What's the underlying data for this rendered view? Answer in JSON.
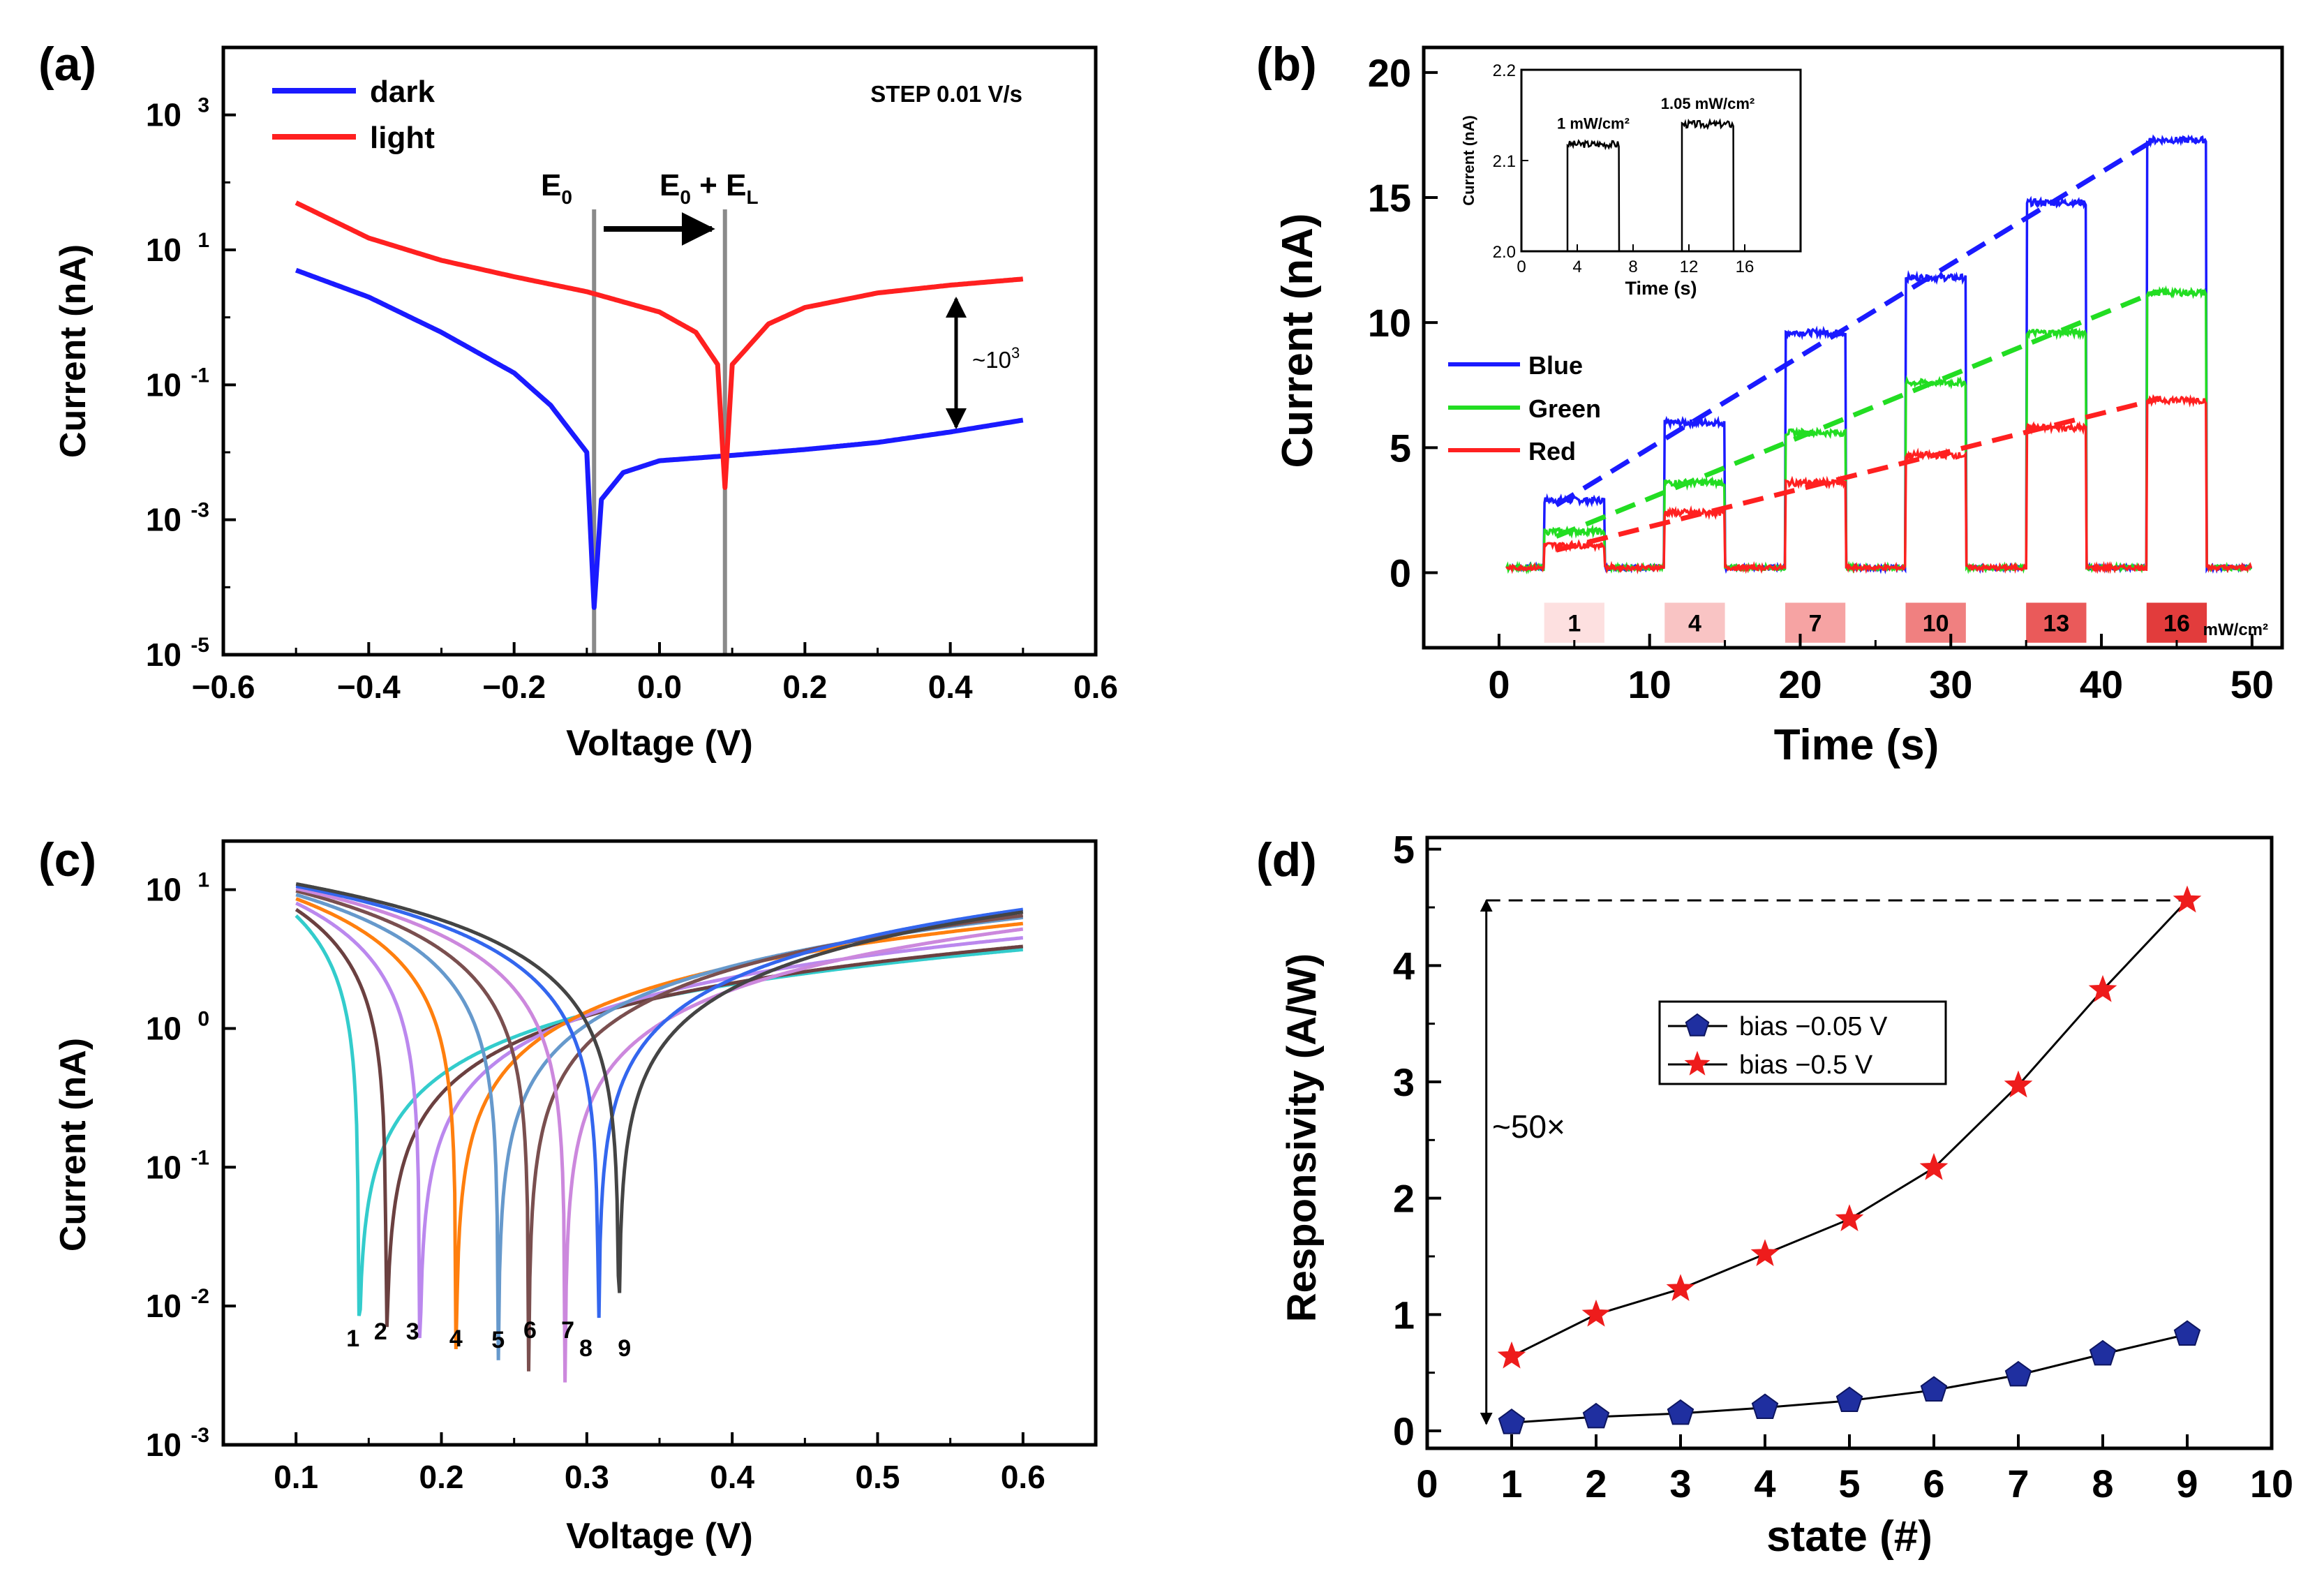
{
  "chart_data": [
    {
      "panel_label": "(a)",
      "type": "line",
      "title": "",
      "xlabel": "Voltage (V)",
      "ylabel": "Current (nA)",
      "xlim": [
        -0.6,
        0.6
      ],
      "ylim_log10": [
        -5,
        4
      ],
      "xticks": [
        "−0.6",
        "−0.4",
        "−0.2",
        "0.0",
        "0.2",
        "0.4",
        "0.6"
      ],
      "ytick_exponents": [
        "3",
        "1",
        "-1",
        "-3",
        "-5"
      ],
      "series": [
        {
          "name": "dark",
          "color": "#1a1aff",
          "zero_voltage": -0.09,
          "x_range": [
            -0.5,
            0.5
          ],
          "x": [
            -0.5,
            -0.4,
            -0.3,
            -0.2,
            -0.15,
            -0.1,
            -0.09,
            -0.08,
            -0.05,
            0.0,
            0.1,
            0.2,
            0.3,
            0.4,
            0.5
          ],
          "y_nA": [
            5.0,
            2.0,
            0.6,
            0.15,
            0.05,
            0.01,
            5e-05,
            0.002,
            0.005,
            0.0075,
            0.009,
            0.011,
            0.014,
            0.02,
            0.03
          ]
        },
        {
          "name": "light",
          "color": "#ff2020",
          "zero_voltage": 0.09,
          "x_range": [
            -0.5,
            0.5
          ],
          "x": [
            -0.5,
            -0.4,
            -0.3,
            -0.2,
            -0.1,
            0.0,
            0.05,
            0.08,
            0.09,
            0.1,
            0.15,
            0.2,
            0.3,
            0.4,
            0.5
          ],
          "y_nA": [
            50,
            15,
            7,
            4,
            2.4,
            1.2,
            0.6,
            0.2,
            0.003,
            0.2,
            0.8,
            1.4,
            2.3,
            3.0,
            3.7
          ]
        }
      ],
      "vertical_lines": [
        {
          "x": -0.09,
          "label_main": "E",
          "label_sub": "0"
        },
        {
          "x": 0.09,
          "label_main": "E",
          "label_sub": "0",
          "label_plus": " + E",
          "label_sub2": "L"
        }
      ],
      "annotations": {
        "step": "STEP 0.01 V/s",
        "ratio": "~10",
        "ratio_exp": "3"
      }
    },
    {
      "panel_label": "(b)",
      "type": "line",
      "xlabel": "Time (s)",
      "ylabel": "Current (nA)",
      "xlim": [
        -5,
        52
      ],
      "ylim": [
        -3,
        21
      ],
      "xticks": [
        "0",
        "10",
        "20",
        "30",
        "40",
        "50"
      ],
      "yticks": [
        "0",
        "5",
        "10",
        "15",
        "20"
      ],
      "pulse_intervals_s": [
        [
          3,
          7
        ],
        [
          11,
          15
        ],
        [
          19,
          23
        ],
        [
          27,
          31
        ],
        [
          35,
          39
        ],
        [
          43,
          47
        ]
      ],
      "intensity_unit": "mW/cm²",
      "intensities": [
        "1",
        "4",
        "7",
        "10",
        "13",
        "16"
      ],
      "intensity_colors": [
        "#fde0e0",
        "#f9c4c4",
        "#f6a3a3",
        "#f08080",
        "#ea5a5a",
        "#e23c3c"
      ],
      "series": [
        {
          "name": "Blue",
          "color": "#1a1aff",
          "plateau_nA": [
            2.9,
            6.0,
            9.6,
            11.8,
            14.8,
            17.3
          ]
        },
        {
          "name": "Green",
          "color": "#22dd22",
          "plateau_nA": [
            1.65,
            3.6,
            5.6,
            7.6,
            9.6,
            11.2
          ]
        },
        {
          "name": "Red",
          "color": "#ff2020",
          "plateau_nA": [
            1.1,
            2.4,
            3.6,
            4.7,
            5.8,
            6.9
          ]
        }
      ],
      "inset": {
        "xlabel": "Time (s)",
        "ylabel": "Current (nA)",
        "xlim": [
          0,
          20
        ],
        "ylim": [
          2.0,
          2.2
        ],
        "xticks": [
          "0",
          "4",
          "8",
          "12",
          "16"
        ],
        "yticks": [
          "2.0",
          "2.1",
          "2.2"
        ],
        "pulses": [
          {
            "label": "1 mW/cm²",
            "t_on": 3.3,
            "t_off": 7.0,
            "value_nA": 2.118
          },
          {
            "label": "1.05 mW/cm²",
            "t_on": 11.5,
            "t_off": 15.2,
            "value_nA": 2.14
          }
        ],
        "baseline_nA": 2.0
      }
    },
    {
      "panel_label": "(c)",
      "type": "line",
      "xlabel": "Voltage (V)",
      "ylabel": "Current (nA)",
      "xlim": [
        0.05,
        0.65
      ],
      "ylim_log10": [
        -3,
        1.35
      ],
      "xticks": [
        "0.1",
        "0.2",
        "0.3",
        "0.4",
        "0.5",
        "0.6"
      ],
      "ytick_exponents": [
        "1",
        "0",
        "-1",
        "-2",
        "-3"
      ],
      "series": [
        {
          "name": "1",
          "color": "#33cccc",
          "zero_voltage": 0.143,
          "y_start_nA": 6.5,
          "y_end_nA": 3.7
        },
        {
          "name": "2",
          "color": "#6b4040",
          "zero_voltage": 0.162,
          "y_start_nA": 7.2,
          "y_end_nA": 3.9
        },
        {
          "name": "3",
          "color": "#bb88ee",
          "zero_voltage": 0.185,
          "y_start_nA": 8.0,
          "y_end_nA": 4.5
        },
        {
          "name": "4",
          "color": "#ff7f0e",
          "zero_voltage": 0.21,
          "y_start_nA": 8.6,
          "y_end_nA": 5.7
        },
        {
          "name": "5",
          "color": "#6699cc",
          "zero_voltage": 0.239,
          "y_start_nA": 9.2,
          "y_end_nA": 6.3
        },
        {
          "name": "6",
          "color": "#7a4f4f",
          "zero_voltage": 0.26,
          "y_start_nA": 9.8,
          "y_end_nA": 6.5
        },
        {
          "name": "7",
          "color": "#cc88dd",
          "zero_voltage": 0.285,
          "y_start_nA": 10.2,
          "y_end_nA": 5.2
        },
        {
          "name": "8",
          "color": "#3366ee",
          "zero_voltage": 0.308,
          "y_start_nA": 10.6,
          "y_end_nA": 7.2
        },
        {
          "name": "9",
          "color": "#444444",
          "zero_voltage": 0.322,
          "y_start_nA": 11.0,
          "y_end_nA": 6.9
        }
      ]
    },
    {
      "panel_label": "(d)",
      "type": "line",
      "xlabel": "state (#)",
      "ylabel": "Responsivity (A/W)",
      "xlim": [
        0,
        10
      ],
      "ylim": [
        -0.15,
        5.1
      ],
      "xticks": [
        "0",
        "1",
        "2",
        "3",
        "4",
        "5",
        "6",
        "7",
        "8",
        "9",
        "10"
      ],
      "yticks": [
        "0",
        "1",
        "2",
        "3",
        "4",
        "5"
      ],
      "series": [
        {
          "name": "bias −0.05 V",
          "marker": "pentagon",
          "color": "#1f2fa0",
          "x": [
            1,
            2,
            3,
            4,
            5,
            6,
            7,
            8,
            9
          ],
          "y": [
            0.07,
            0.12,
            0.15,
            0.2,
            0.26,
            0.35,
            0.48,
            0.66,
            0.83
          ]
        },
        {
          "name": "bias −0.5 V",
          "marker": "star",
          "color": "#ee1c1c",
          "x": [
            1,
            2,
            3,
            4,
            5,
            6,
            7,
            8,
            9
          ],
          "y": [
            0.64,
            1.0,
            1.22,
            1.52,
            1.82,
            2.26,
            2.97,
            3.79,
            4.56
          ]
        }
      ],
      "annotations": {
        "ratio": "~50×",
        "dashed_level": 4.56
      }
    }
  ]
}
